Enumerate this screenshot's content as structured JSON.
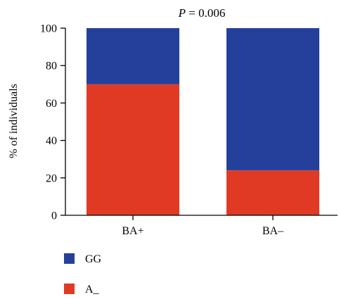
{
  "chart_data": {
    "type": "bar",
    "stacked": true,
    "title": "P = 0.006",
    "title_italic_part": "P",
    "title_rest": " = 0.006",
    "categories": [
      "BA+",
      "BA–"
    ],
    "series": [
      {
        "name": "A_",
        "values": [
          70,
          24
        ],
        "color": "#e03a25"
      },
      {
        "name": "GG",
        "values": [
          30,
          76
        ],
        "color": "#25409b"
      }
    ],
    "ylabel": "% of individuals",
    "xlabel": "",
    "ylim": [
      0,
      100
    ],
    "yticks": [
      0,
      20,
      40,
      60,
      80,
      100
    ],
    "ytick_labels": [
      "0",
      "20",
      "40",
      "60",
      "80",
      "100"
    ],
    "legend_position": "bottom-left",
    "legend_order": [
      "GG",
      "A_"
    ],
    "grid": false
  }
}
